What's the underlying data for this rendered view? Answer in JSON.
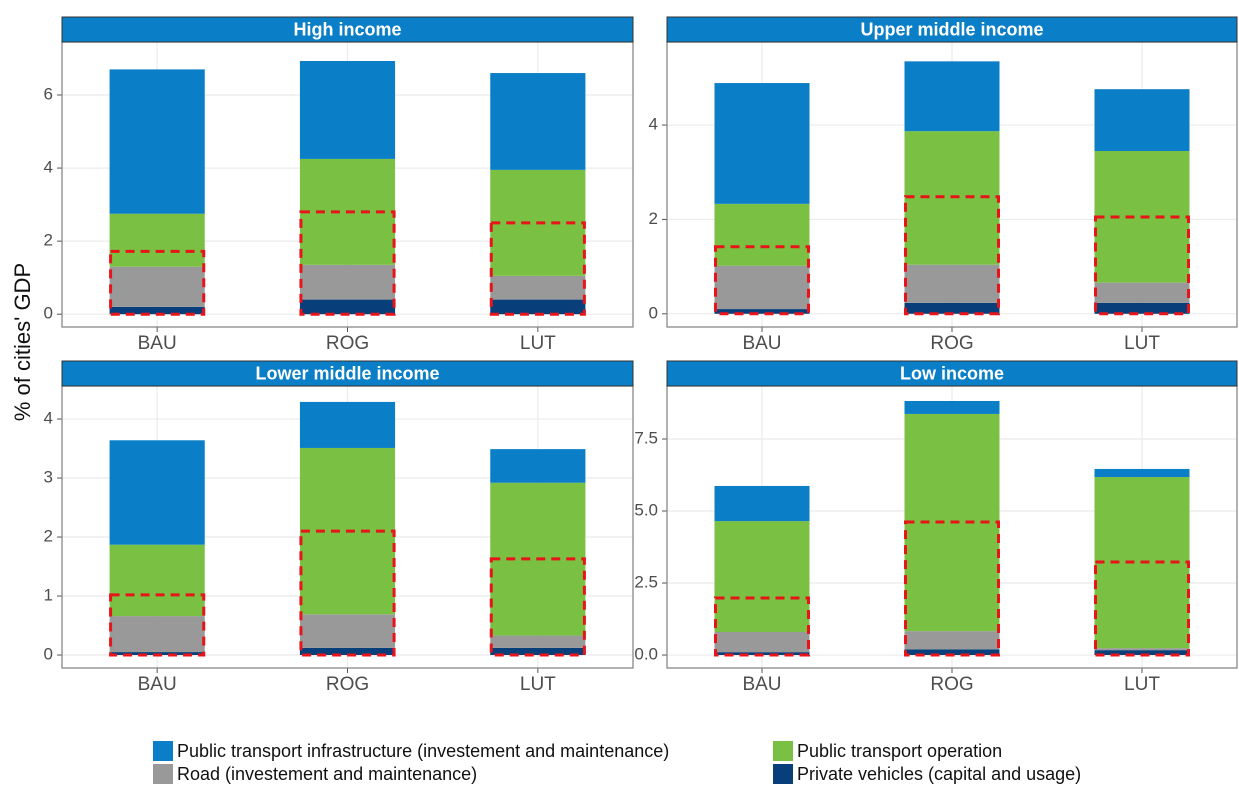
{
  "y_label": "% of cities' GDP",
  "chart_data": [
    {
      "type": "bar",
      "stacked": true,
      "title": "High income",
      "grid": true,
      "categories": [
        "BAU",
        "ROG",
        "LUT"
      ],
      "series": [
        {
          "name": "Private vehicles (capital and usage)",
          "color": "#083f7a",
          "values": [
            0.2,
            0.4,
            0.4
          ]
        },
        {
          "name": "Road (investement and maintenance)",
          "color": "#999999",
          "values": [
            1.1,
            0.95,
            0.65
          ]
        },
        {
          "name": "Public transport operation",
          "color": "#7ac143",
          "values": [
            1.45,
            2.9,
            2.9
          ]
        },
        {
          "name": "Public transport infrastructure (investement and maintenance)",
          "color": "#0a7ec6",
          "values": [
            3.95,
            2.68,
            2.65
          ]
        }
      ],
      "boxes": {
        "color": "#e8141a",
        "values": [
          1.72,
          2.8,
          2.5
        ]
      },
      "ylim": [
        -0.35,
        7.45
      ],
      "yticks": [
        0,
        2,
        4,
        6
      ]
    },
    {
      "type": "bar",
      "stacked": true,
      "title": "Upper middle income",
      "grid": true,
      "categories": [
        "BAU",
        "ROG",
        "LUT"
      ],
      "series": [
        {
          "name": "Private vehicles (capital and usage)",
          "color": "#083f7a",
          "values": [
            0.1,
            0.23,
            0.23
          ]
        },
        {
          "name": "Road (investement and maintenance)",
          "color": "#999999",
          "values": [
            0.92,
            0.81,
            0.43
          ]
        },
        {
          "name": "Public transport operation",
          "color": "#7ac143",
          "values": [
            1.31,
            2.83,
            2.79
          ]
        },
        {
          "name": "Public transport infrastructure (investement and maintenance)",
          "color": "#0a7ec6",
          "values": [
            2.56,
            1.48,
            1.31
          ]
        }
      ],
      "boxes": {
        "color": "#e8141a",
        "values": [
          1.42,
          2.48,
          2.05
        ]
      },
      "ylim": [
        -0.28,
        5.76
      ],
      "yticks": [
        0,
        2,
        4
      ]
    },
    {
      "type": "bar",
      "stacked": true,
      "title": "Lower middle income",
      "grid": true,
      "categories": [
        "BAU",
        "ROG",
        "LUT"
      ],
      "series": [
        {
          "name": "Private vehicles (capital and usage)",
          "color": "#083f7a",
          "values": [
            0.05,
            0.12,
            0.12
          ]
        },
        {
          "name": "Road (investement and maintenance)",
          "color": "#999999",
          "values": [
            0.61,
            0.57,
            0.21
          ]
        },
        {
          "name": "Public transport operation",
          "color": "#7ac143",
          "values": [
            1.21,
            2.82,
            2.59
          ]
        },
        {
          "name": "Public transport infrastructure (investement and maintenance)",
          "color": "#0a7ec6",
          "values": [
            1.77,
            0.78,
            0.57
          ]
        }
      ],
      "boxes": {
        "color": "#e8141a",
        "values": [
          1.02,
          2.1,
          1.63
        ]
      },
      "ylim": [
        -0.22,
        4.56
      ],
      "yticks": [
        0,
        1,
        2,
        3,
        4
      ]
    },
    {
      "type": "bar",
      "stacked": true,
      "title": "Low income",
      "grid": true,
      "categories": [
        "BAU",
        "ROG",
        "LUT"
      ],
      "series": [
        {
          "name": "Private vehicles (capital and usage)",
          "color": "#083f7a",
          "values": [
            0.1,
            0.2,
            0.17
          ]
        },
        {
          "name": "Road (investement and maintenance)",
          "color": "#999999",
          "values": [
            0.7,
            0.63,
            0.07
          ]
        },
        {
          "name": "Public transport operation",
          "color": "#7ac143",
          "values": [
            3.85,
            7.54,
            5.94
          ]
        },
        {
          "name": "Public transport infrastructure (investement and maintenance)",
          "color": "#0a7ec6",
          "values": [
            1.22,
            0.45,
            0.28
          ]
        }
      ],
      "boxes": {
        "color": "#e8141a",
        "values": [
          1.98,
          4.62,
          3.23
        ]
      },
      "ylim": [
        -0.45,
        9.34
      ],
      "yticks": [
        {
          "value": 0,
          "label": "0.0"
        },
        2.5,
        {
          "value": 5,
          "label": "5.0"
        },
        7.5
      ]
    }
  ]
}
